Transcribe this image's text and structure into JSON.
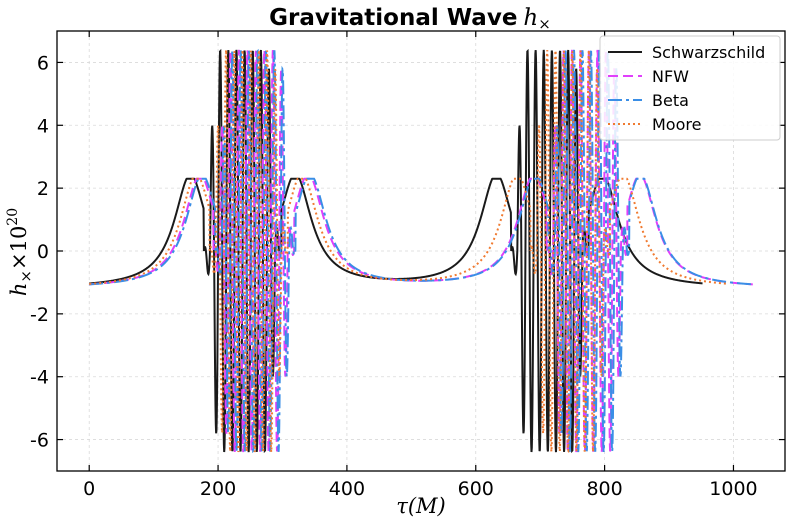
{
  "chart_data": {
    "type": "line",
    "title": "Gravitational Wave",
    "title_symbol": "h",
    "title_symbol_sub": "×",
    "xlabel": "τ(M)",
    "ylabel": "h",
    "ylabel_sub": "×",
    "ylabel_times": "×10",
    "ylabel_exp": "20",
    "xlim": [
      -50,
      1080
    ],
    "ylim": [
      -7,
      7
    ],
    "xticks": [
      0,
      200,
      400,
      600,
      800,
      1000
    ],
    "xtick_labels": [
      "0",
      "200",
      "400",
      "600",
      "800",
      "1000"
    ],
    "yticks": [
      -6,
      -4,
      -2,
      0,
      2,
      4,
      6
    ],
    "ytick_labels": [
      "-6",
      "-4",
      "-2",
      "0",
      "2",
      "4",
      "6"
    ],
    "grid": true,
    "legend_position": "top-right",
    "series": [
      {
        "name": "Schwarzschild",
        "color": "#1a1a1a",
        "dash": "solid",
        "t_start": 0,
        "t_end": 952,
        "peak1": 157,
        "peak2": 320,
        "peak3": 632,
        "peak4": 797,
        "min_mid": 478,
        "burst1_start": 178,
        "burst1_end": 298,
        "burst2_start": 655,
        "burst2_end": 775
      },
      {
        "name": "NFW",
        "color": "#e040fb",
        "dash": "dashed",
        "t_start": 0,
        "t_end": 1030,
        "peak1": 172,
        "peak2": 340,
        "peak3": 690,
        "peak4": 855,
        "min_mid": 515,
        "burst1_start": 193,
        "burst1_end": 318,
        "burst2_start": 710,
        "burst2_end": 835
      },
      {
        "name": "Beta",
        "color": "#3a8ee6",
        "dash": "dashdot",
        "t_start": 0,
        "t_end": 1028,
        "peak1": 175,
        "peak2": 343,
        "peak3": 692,
        "peak4": 856,
        "min_mid": 517,
        "burst1_start": 196,
        "burst1_end": 320,
        "burst2_start": 713,
        "burst2_end": 838
      },
      {
        "name": "Moore",
        "color": "#f07a30",
        "dash": "dotted",
        "t_start": 0,
        "t_end": 992,
        "peak1": 166,
        "peak2": 330,
        "peak3": 664,
        "peak4": 829,
        "min_mid": 497,
        "burst1_start": 187,
        "burst1_end": 308,
        "burst2_start": 685,
        "burst2_end": 808
      }
    ],
    "shape": {
      "baseline": -1.2,
      "peak": 2.3,
      "burst_amp": 6.4,
      "burst_cycles": 9.5
    }
  }
}
